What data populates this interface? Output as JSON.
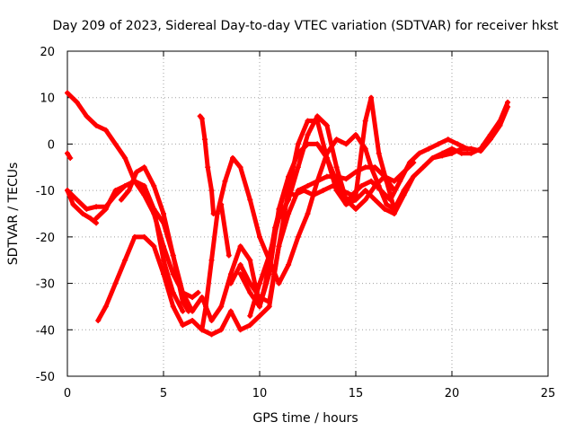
{
  "chart_data": {
    "type": "scatter",
    "title": "Day 209 of 2023, Sidereal Day-to-day VTEC variation (SDTVAR) for receiver hkst",
    "xlabel": "GPS time / hours",
    "ylabel": "SDTVAR / TECUs",
    "xlim": [
      0,
      25
    ],
    "ylim": [
      -50,
      20
    ],
    "xticks": [
      "0",
      "5",
      "10",
      "15",
      "20",
      "25"
    ],
    "yticks": [
      "-50",
      "-40",
      "-30",
      "-20",
      "-10",
      "0",
      "10",
      "20"
    ],
    "grid": true,
    "marker": "+",
    "color": "#ff0000",
    "series": [
      {
        "name": "trace-1",
        "x": [
          0.0,
          0.5,
          1.0,
          1.5,
          2.0,
          2.5,
          3.0,
          3.5,
          4.0,
          4.5,
          5.0,
          5.5,
          6.0,
          6.5,
          6.8
        ],
        "y": [
          11,
          9,
          6,
          4,
          3,
          0,
          -3,
          -8,
          -11,
          -15,
          -22,
          -28,
          -32,
          -33,
          -32
        ]
      },
      {
        "name": "trace-2",
        "x": [
          0.0,
          0.5,
          1.0,
          1.5,
          2.0,
          2.5,
          3.0,
          3.5,
          4.0,
          4.5,
          5.0,
          5.5,
          6.0,
          6.3
        ],
        "y": [
          -10,
          -12,
          -14,
          -13.5,
          -13.5,
          -11,
          -9,
          -8,
          -10,
          -14,
          -17,
          -24,
          -34,
          -36
        ]
      },
      {
        "name": "trace-3",
        "x": [
          0.0,
          0.3,
          0.8,
          1.2,
          1.5
        ],
        "y": [
          -10,
          -13,
          -15,
          -16,
          -17
        ]
      },
      {
        "name": "trace-4",
        "x": [
          1.5,
          2.0,
          2.5,
          3.0,
          3.5,
          4.0,
          4.5,
          5.0,
          5.5,
          6.0
        ],
        "y": [
          -16,
          -14,
          -10,
          -9,
          -8,
          -9,
          -14,
          -25,
          -32,
          -36
        ]
      },
      {
        "name": "trace-5",
        "x": [
          1.6,
          2.0,
          2.5,
          3.0,
          3.5,
          4.0,
          4.5,
          5.0,
          5.5,
          6.0,
          6.5,
          7.0,
          7.5,
          8.0,
          8.5,
          9.0,
          9.5,
          10.0,
          10.5,
          11.0,
          11.5,
          12.0,
          12.5,
          13.0,
          13.5,
          14.0,
          14.5,
          15.0,
          15.5,
          16.0,
          16.5,
          17.0
        ],
        "y": [
          -38,
          -35,
          -30,
          -25,
          -20,
          -20,
          -22,
          -28,
          -35,
          -39,
          -38,
          -40,
          -41,
          -40,
          -36,
          -40,
          -39,
          -37,
          -35,
          -22,
          -15,
          -10,
          -9,
          -8,
          -7,
          -7,
          -7.5,
          -6,
          -5,
          -5,
          -7,
          -10
        ]
      },
      {
        "name": "trace-6",
        "x": [
          2.8,
          3.2,
          3.6,
          4.0,
          4.5,
          5.0,
          5.5,
          6.0,
          6.5,
          7.0,
          7.5,
          8.0,
          8.5,
          9.0,
          9.5,
          10.0,
          10.3,
          10.8,
          11.3,
          11.8,
          12.3,
          12.8,
          13.3,
          13.8,
          14.3,
          14.8,
          15.3,
          15.8,
          16.3,
          16.8,
          17.3,
          17.8,
          18.3,
          18.8,
          19.3,
          19.8,
          20.3,
          20.8
        ],
        "y": [
          -12,
          -10,
          -6,
          -5,
          -9,
          -15,
          -24,
          -32,
          -36,
          -33,
          -38,
          -35,
          -28,
          -22,
          -25,
          -35,
          -30,
          -18,
          -10,
          -11,
          -10,
          -11,
          -10,
          -9,
          -10,
          -11,
          -9,
          -8,
          -10,
          -12,
          -8,
          -4,
          -2,
          -1,
          0,
          1,
          0,
          -1
        ]
      },
      {
        "name": "trace-7",
        "x": [
          7.0,
          7.2,
          7.5,
          7.8,
          8.2,
          8.6,
          9.0,
          9.5,
          10.0,
          10.5,
          11.0,
          11.5,
          12.0,
          12.5,
          13.0,
          13.5,
          14.0,
          14.5,
          15.0,
          15.5,
          15.8,
          16.2,
          16.6,
          17.0,
          17.5,
          18.0,
          18.5,
          19.0,
          19.5,
          20.0,
          20.5,
          21.0,
          21.5,
          22.0,
          22.5,
          22.9
        ],
        "y": [
          -40,
          -35,
          -25,
          -15,
          -8,
          -3,
          -5,
          -12,
          -20,
          -25,
          -30,
          -26,
          -20,
          -15,
          -8,
          -2,
          1,
          0,
          2,
          -1,
          -5,
          -9,
          -13,
          -14,
          -10,
          -7,
          -5,
          -3,
          -2,
          -1,
          -2,
          -2,
          -1,
          2,
          5,
          9
        ]
      },
      {
        "name": "trace-8",
        "x": [
          8.5,
          9.0,
          9.5,
          10.0,
          10.5,
          11.0,
          11.5,
          12.0,
          12.5,
          13.0,
          13.5,
          14.0,
          14.5,
          15.0,
          15.5,
          16.0,
          16.5,
          17.0,
          17.5,
          18.0
        ],
        "y": [
          -30,
          -26,
          -30,
          -33,
          -34,
          -22,
          -10,
          0,
          5,
          5,
          -3,
          -10,
          -13,
          -12,
          -10,
          -12,
          -14,
          -15,
          -11,
          -7
        ]
      },
      {
        "name": "trace-9",
        "x": [
          9.5,
          10.0,
          10.5,
          11.0,
          11.5,
          12.0,
          12.5,
          13.0,
          13.5,
          14.0,
          14.5,
          15.0,
          15.5,
          15.8,
          16.2,
          16.6,
          17.0
        ],
        "y": [
          -37,
          -30,
          -24,
          -16,
          -12,
          -5,
          2,
          6,
          4,
          -5,
          -12,
          -11,
          5,
          10,
          -2,
          -8,
          -14
        ]
      },
      {
        "name": "trace-10",
        "x": [
          9.0,
          9.5,
          10.0,
          10.5,
          11.0,
          11.5,
          12.0,
          12.5,
          13.0,
          13.5,
          14.0,
          14.5,
          15.0,
          15.5,
          16.0,
          16.5,
          17.0,
          17.5,
          18.0
        ],
        "y": [
          -28,
          -32,
          -35,
          -28,
          -14,
          -7,
          -2,
          0,
          0,
          -3,
          -8,
          -12,
          -14,
          -12,
          -9,
          -7,
          -8,
          -6,
          -4
        ]
      },
      {
        "name": "trace-11",
        "x": [
          0.0,
          0.15
        ],
        "y": [
          -2,
          -3
        ]
      },
      {
        "name": "trace-12",
        "x": [
          6.9,
          7.0,
          7.15,
          7.3,
          7.5,
          7.6
        ],
        "y": [
          6,
          5.5,
          1,
          -5,
          -10,
          -15
        ]
      },
      {
        "name": "trace-13",
        "x": [
          8.0,
          8.4
        ],
        "y": [
          -13,
          -24
        ]
      },
      {
        "name": "trace-14",
        "x": [
          19.0,
          19.5,
          20.0,
          20.5,
          21.0,
          21.5,
          22.0,
          22.5,
          22.9
        ],
        "y": [
          -3,
          -2.5,
          -2,
          -1,
          -1,
          -1.5,
          1,
          4,
          8
        ]
      }
    ]
  }
}
